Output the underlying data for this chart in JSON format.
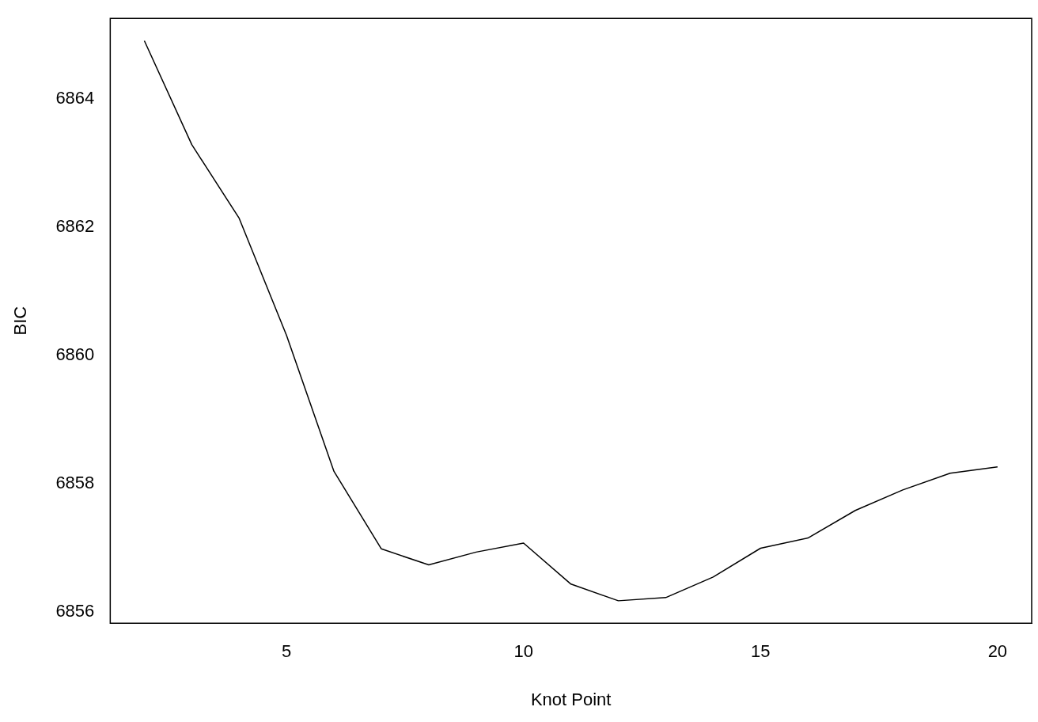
{
  "chart_data": {
    "type": "line",
    "xlabel": "Knot Point",
    "ylabel": "BIC",
    "x": [
      2,
      3,
      4,
      5,
      6,
      7,
      8,
      9,
      10,
      11,
      12,
      13,
      14,
      15,
      16,
      17,
      18,
      19,
      20
    ],
    "series": [
      {
        "color": "#000000",
        "values": [
          6864.91,
          6863.29,
          6862.14,
          6860.31,
          6858.19,
          6856.98,
          6856.73,
          6856.93,
          6857.07,
          6856.43,
          6856.17,
          6856.22,
          6856.54,
          6856.99,
          6857.15,
          6857.58,
          6857.9,
          6858.16,
          6858.26
        ]
      }
    ],
    "xlim": [
      1.28,
      20.72
    ],
    "ylim": [
      6855.82,
      6865.26
    ],
    "xticks": [
      5,
      10,
      15,
      20
    ],
    "yticks": [
      6856,
      6858,
      6860,
      6862,
      6864
    ],
    "grid": false,
    "legend": false,
    "marker": "none",
    "line_style": "solid"
  }
}
